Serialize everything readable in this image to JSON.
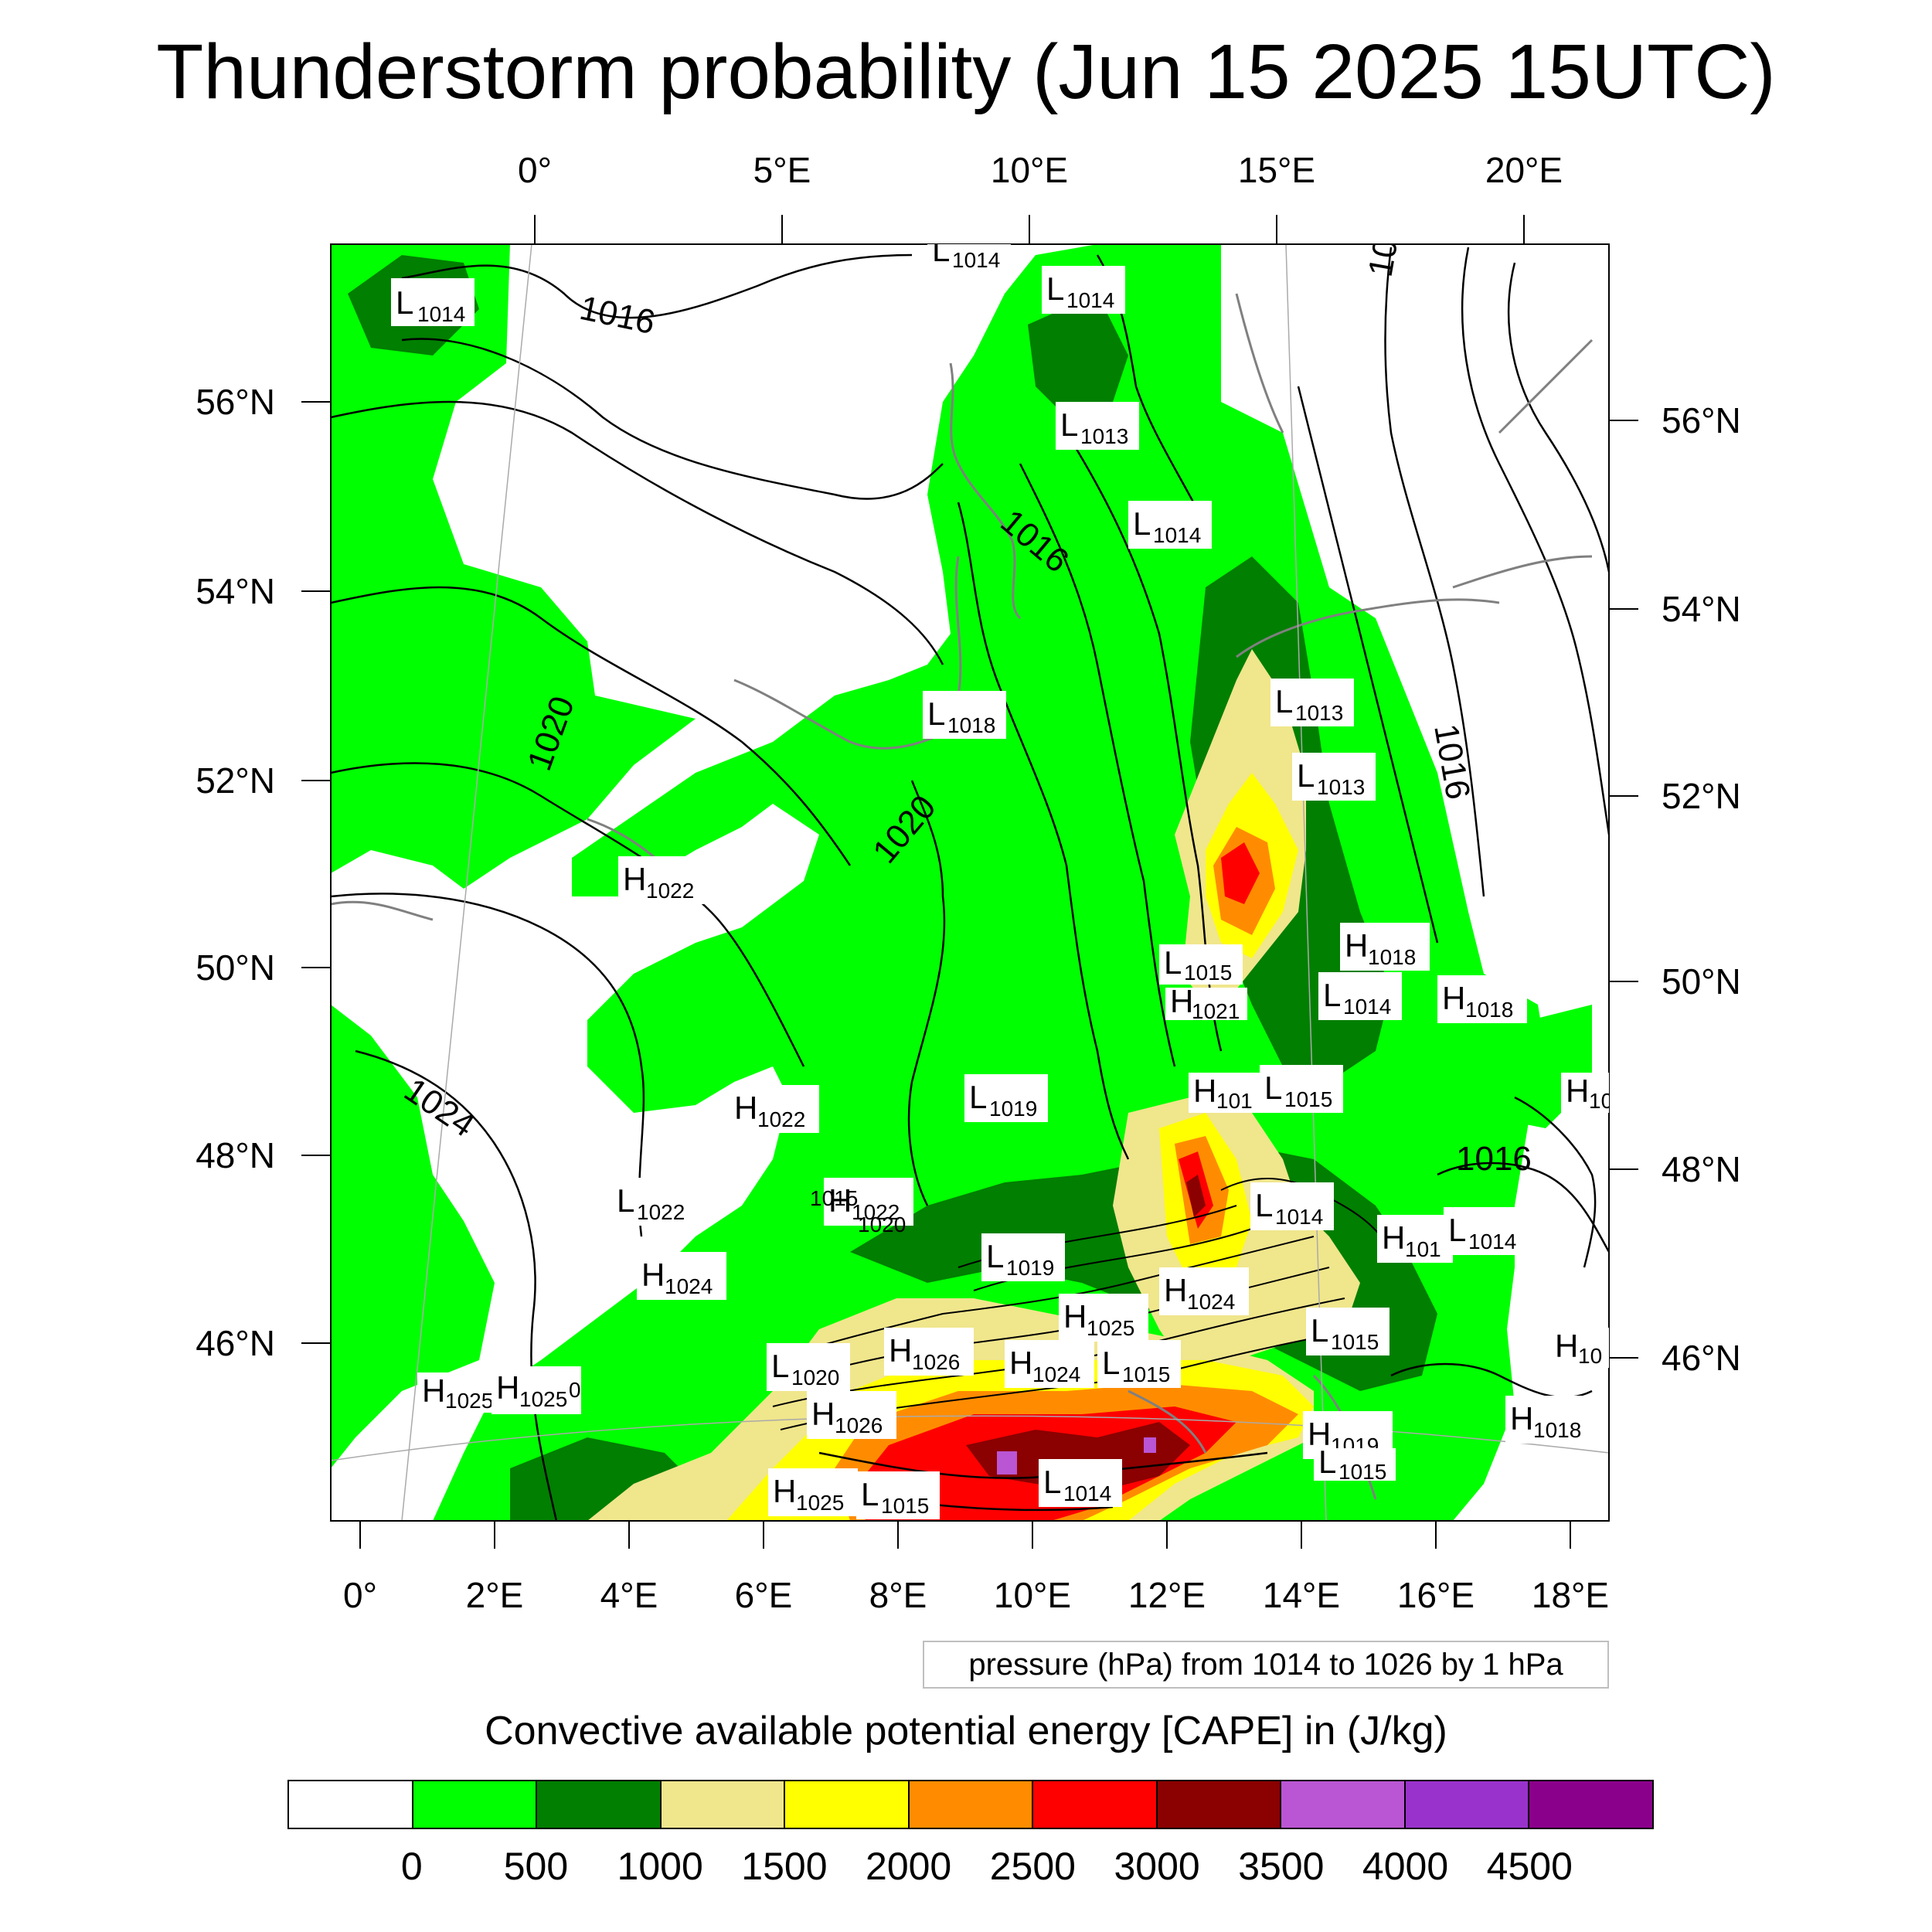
{
  "title": "Thunderstorm probability (Jun 15 2025 15UTC)",
  "map": {
    "top_lon_labels": [
      "0°",
      "5°E",
      "10°E",
      "15°E",
      "20°E"
    ],
    "bottom_lon_labels": [
      "0°",
      "2°E",
      "4°E",
      "6°E",
      "8°E",
      "10°E",
      "12°E",
      "14°E",
      "16°E",
      "18°E"
    ],
    "left_lat_labels": [
      "56°N",
      "54°N",
      "52°N",
      "50°N",
      "48°N",
      "46°N"
    ],
    "right_lat_labels": [
      "56°N",
      "54°N",
      "52°N",
      "50°N",
      "48°N",
      "46°N"
    ],
    "isobar_labels": [
      "1016",
      "1016",
      "1016",
      "1016",
      "1020",
      "1020",
      "1024",
      "1016"
    ],
    "pressure_centers": [
      {
        "letter": "L",
        "value": "1014"
      },
      {
        "letter": "L",
        "value": "1014"
      },
      {
        "letter": "L",
        "value": "1014"
      },
      {
        "letter": "L",
        "value": "1013"
      },
      {
        "letter": "L",
        "value": "1014"
      },
      {
        "letter": "L",
        "value": "1018"
      },
      {
        "letter": "L",
        "value": "1013"
      },
      {
        "letter": "L",
        "value": "1013"
      },
      {
        "letter": "H",
        "value": "1022"
      },
      {
        "letter": "H",
        "value": "1018"
      },
      {
        "letter": "L",
        "value": "1015"
      },
      {
        "letter": "H",
        "value": "1021"
      },
      {
        "letter": "L",
        "value": "1014"
      },
      {
        "letter": "H",
        "value": "1018"
      },
      {
        "letter": "L",
        "value": "1019"
      },
      {
        "letter": "H",
        "value": "1022"
      },
      {
        "letter": "H",
        "value": "101"
      },
      {
        "letter": "L",
        "value": "1015"
      },
      {
        "letter": "H",
        "value": "10"
      },
      {
        "letter": "L",
        "value": "1022"
      },
      {
        "letter": "H",
        "value": "1022"
      },
      {
        "letter": "L",
        "value": "1014"
      },
      {
        "letter": "H",
        "value": "101"
      },
      {
        "letter": "L",
        "value": "1014"
      },
      {
        "letter": "L",
        "value": "1019"
      },
      {
        "letter": "H",
        "value": "1024"
      },
      {
        "letter": "H",
        "value": "1024"
      },
      {
        "letter": "H",
        "value": "1025"
      },
      {
        "letter": "L",
        "value": "1015"
      },
      {
        "letter": "H",
        "value": "1026"
      },
      {
        "letter": "L",
        "value": "1020"
      },
      {
        "letter": "H",
        "value": "1024"
      },
      {
        "letter": "L",
        "value": "1015"
      },
      {
        "letter": "H",
        "value": "10"
      },
      {
        "letter": "H",
        "value": "1025"
      },
      {
        "letter": "H",
        "value": "1025"
      },
      {
        "letter": "H",
        "value": "1026"
      },
      {
        "letter": "H",
        "value": "1019"
      },
      {
        "letter": "H",
        "value": "1018"
      },
      {
        "letter": "L",
        "value": "1015"
      },
      {
        "letter": "H",
        "value": "1025"
      },
      {
        "letter": "L",
        "value": "1015"
      },
      {
        "letter": "L",
        "value": "1014"
      }
    ],
    "small_text": [
      "1020",
      "1015",
      "0"
    ]
  },
  "contour_range_text": "pressure (hPa) from 1014 to 1026 by 1 hPa",
  "colorbar": {
    "title": "Convective available potential energy [CAPE] in (J/kg)",
    "colors": [
      "#ffffff",
      "#00ff00",
      "#007f00",
      "#f0e68c",
      "#ffff00",
      "#ff8c00",
      "#ff0000",
      "#8b0000",
      "#ba55d3",
      "#9932cc",
      "#8b008b"
    ],
    "labels": [
      "0",
      "500",
      "1000",
      "1500",
      "2000",
      "2500",
      "3000",
      "3500",
      "4000",
      "4500"
    ]
  }
}
